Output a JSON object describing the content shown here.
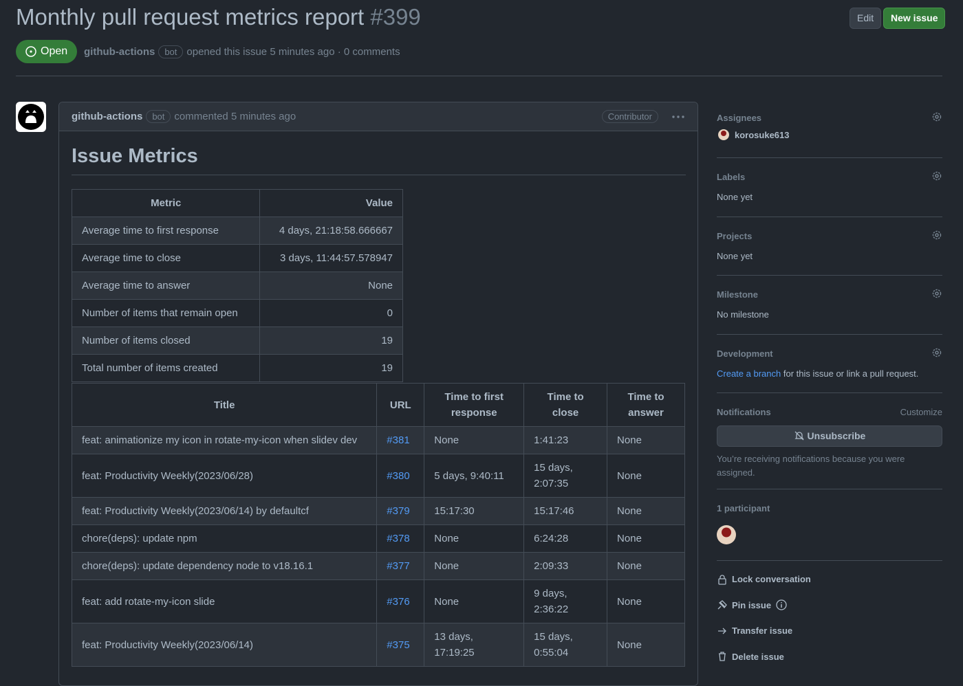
{
  "header": {
    "title": "Monthly pull request metrics report",
    "number": "#399",
    "edit": "Edit",
    "new_issue": "New issue",
    "state": "Open",
    "author": "github-actions",
    "author_badge": "bot",
    "meta": "opened this issue 5 minutes ago · 0 comments"
  },
  "comment": {
    "author": "github-actions",
    "author_badge": "bot",
    "time": "commented 5 minutes ago",
    "role": "Contributor",
    "heading": "Issue Metrics"
  },
  "summary_table": {
    "headers": [
      "Metric",
      "Value"
    ],
    "rows": [
      [
        "Average time to first response",
        "4 days, 21:18:58.666667"
      ],
      [
        "Average time to close",
        "3 days, 11:44:57.578947"
      ],
      [
        "Average time to answer",
        "None"
      ],
      [
        "Number of items that remain open",
        "0"
      ],
      [
        "Number of items closed",
        "19"
      ],
      [
        "Total number of items created",
        "19"
      ]
    ]
  },
  "items_table": {
    "headers": [
      "Title",
      "URL",
      "Time to first response",
      "Time to close",
      "Time to answer"
    ],
    "rows": [
      [
        "feat: animationize my icon in rotate-my-icon when slidev dev",
        "#381",
        "None",
        "1:41:23",
        "None"
      ],
      [
        "feat: Productivity Weekly(2023/06/28)",
        "#380",
        "5 days, 9:40:11",
        "15 days, 2:07:35",
        "None"
      ],
      [
        "feat: Productivity Weekly(2023/06/14) by defaultcf",
        "#379",
        "15:17:30",
        "15:17:46",
        "None"
      ],
      [
        "chore(deps): update npm",
        "#378",
        "None",
        "6:24:28",
        "None"
      ],
      [
        "chore(deps): update dependency node to v18.16.1",
        "#377",
        "None",
        "2:09:33",
        "None"
      ],
      [
        "feat: add rotate-my-icon slide",
        "#376",
        "None",
        "9 days, 2:36:22",
        "None"
      ],
      [
        "feat: Productivity Weekly(2023/06/14)",
        "#375",
        "13 days, 17:19:25",
        "15 days, 0:55:04",
        "None"
      ]
    ]
  },
  "sidebar": {
    "assignees": {
      "label": "Assignees",
      "value": "korosuke613"
    },
    "labels": {
      "label": "Labels",
      "value": "None yet"
    },
    "projects": {
      "label": "Projects",
      "value": "None yet"
    },
    "milestone": {
      "label": "Milestone",
      "value": "No milestone"
    },
    "development": {
      "label": "Development",
      "link": "Create a branch",
      "text": "for this issue or link a pull request."
    },
    "notifications": {
      "label": "Notifications",
      "customize": "Customize",
      "button": "Unsubscribe",
      "note": "You’re receiving notifications because you were assigned."
    },
    "participants": {
      "label": "1 participant"
    },
    "actions": [
      "Lock conversation",
      "Pin issue",
      "Transfer issue",
      "Delete issue"
    ]
  }
}
